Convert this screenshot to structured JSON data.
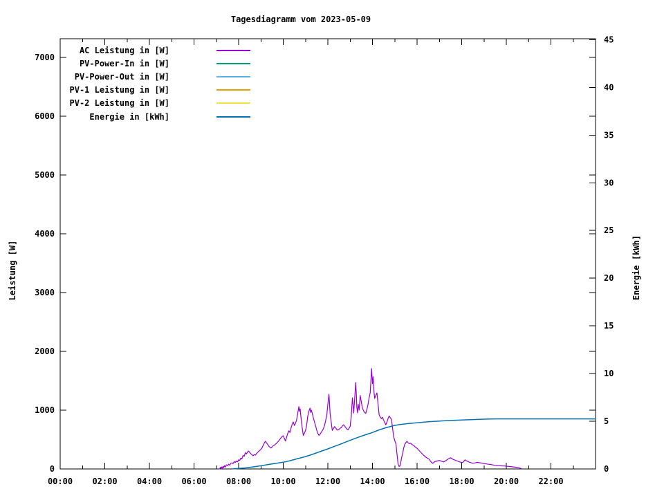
{
  "chart_data": {
    "type": "line",
    "title": "Tagesdiagramm vom 2023-05-09",
    "xlabel": "",
    "ylabel": "Leistung [W]",
    "y2label": "Energie [kWh]",
    "grid": false,
    "legend_position": "top-left-inside",
    "x_range_hours": [
      0,
      24
    ],
    "y_range": [
      0,
      7315
    ],
    "y2_range": [
      0,
      45.1
    ],
    "x_ticks": [
      {
        "h": 0,
        "label": "00:00"
      },
      {
        "h": 2,
        "label": "02:00"
      },
      {
        "h": 4,
        "label": "04:00"
      },
      {
        "h": 6,
        "label": "06:00"
      },
      {
        "h": 8,
        "label": "08:00"
      },
      {
        "h": 10,
        "label": "10:00"
      },
      {
        "h": 12,
        "label": "12:00"
      },
      {
        "h": 14,
        "label": "14:00"
      },
      {
        "h": 16,
        "label": "16:00"
      },
      {
        "h": 18,
        "label": "18:00"
      },
      {
        "h": 20,
        "label": "20:00"
      },
      {
        "h": 22,
        "label": "22:00"
      }
    ],
    "x_minor_tick_every_hours": 1,
    "y_ticks": [
      {
        "v": 0,
        "label": "0"
      },
      {
        "v": 1000,
        "label": "1000"
      },
      {
        "v": 2000,
        "label": "2000"
      },
      {
        "v": 3000,
        "label": "3000"
      },
      {
        "v": 4000,
        "label": "4000"
      },
      {
        "v": 5000,
        "label": "5000"
      },
      {
        "v": 6000,
        "label": "6000"
      },
      {
        "v": 7000,
        "label": "7000"
      }
    ],
    "y2_ticks": [
      {
        "v": 0,
        "label": "0"
      },
      {
        "v": 5,
        "label": "5"
      },
      {
        "v": 10,
        "label": "10"
      },
      {
        "v": 15,
        "label": "15"
      },
      {
        "v": 20,
        "label": "20"
      },
      {
        "v": 25,
        "label": "25"
      },
      {
        "v": 30,
        "label": "30"
      },
      {
        "v": 35,
        "label": "35"
      },
      {
        "v": 40,
        "label": "40"
      },
      {
        "v": 45,
        "label": "45"
      }
    ],
    "series": [
      {
        "name": "AC Leistung in [W]",
        "color": "#9400D3",
        "axis": "y",
        "width": 1.2,
        "points": [
          [
            7.15,
            2
          ],
          [
            7.18,
            25
          ],
          [
            7.2,
            8
          ],
          [
            7.23,
            35
          ],
          [
            7.26,
            12
          ],
          [
            7.3,
            45
          ],
          [
            7.33,
            20
          ],
          [
            7.36,
            55
          ],
          [
            7.4,
            30
          ],
          [
            7.45,
            70
          ],
          [
            7.5,
            55
          ],
          [
            7.55,
            80
          ],
          [
            7.6,
            65
          ],
          [
            7.65,
            95
          ],
          [
            7.7,
            105
          ],
          [
            7.75,
            90
          ],
          [
            7.8,
            125
          ],
          [
            7.85,
            110
          ],
          [
            7.9,
            135
          ],
          [
            7.95,
            120
          ],
          [
            8.0,
            155
          ],
          [
            8.05,
            145
          ],
          [
            8.1,
            185
          ],
          [
            8.15,
            170
          ],
          [
            8.2,
            230
          ],
          [
            8.25,
            215
          ],
          [
            8.3,
            275
          ],
          [
            8.35,
            255
          ],
          [
            8.4,
            290
          ],
          [
            8.45,
            305
          ],
          [
            8.5,
            280
          ],
          [
            8.55,
            260
          ],
          [
            8.6,
            240
          ],
          [
            8.65,
            225
          ],
          [
            8.7,
            245
          ],
          [
            8.75,
            235
          ],
          [
            8.8,
            260
          ],
          [
            8.85,
            280
          ],
          [
            8.9,
            300
          ],
          [
            8.95,
            315
          ],
          [
            9.0,
            335
          ],
          [
            9.05,
            360
          ],
          [
            9.1,
            400
          ],
          [
            9.15,
            440
          ],
          [
            9.2,
            470
          ],
          [
            9.25,
            445
          ],
          [
            9.3,
            420
          ],
          [
            9.35,
            390
          ],
          [
            9.4,
            370
          ],
          [
            9.45,
            355
          ],
          [
            9.5,
            375
          ],
          [
            9.55,
            395
          ],
          [
            9.6,
            405
          ],
          [
            9.65,
            420
          ],
          [
            9.7,
            435
          ],
          [
            9.75,
            460
          ],
          [
            9.8,
            480
          ],
          [
            9.85,
            505
          ],
          [
            9.9,
            530
          ],
          [
            9.95,
            550
          ],
          [
            10.0,
            565
          ],
          [
            10.05,
            520
          ],
          [
            10.1,
            475
          ],
          [
            10.15,
            535
          ],
          [
            10.2,
            600
          ],
          [
            10.25,
            650
          ],
          [
            10.3,
            620
          ],
          [
            10.35,
            700
          ],
          [
            10.4,
            760
          ],
          [
            10.45,
            800
          ],
          [
            10.5,
            740
          ],
          [
            10.55,
            780
          ],
          [
            10.6,
            830
          ],
          [
            10.65,
            950
          ],
          [
            10.7,
            1060
          ],
          [
            10.73,
            980
          ],
          [
            10.76,
            1020
          ],
          [
            10.8,
            860
          ],
          [
            10.85,
            700
          ],
          [
            10.9,
            570
          ],
          [
            10.95,
            610
          ],
          [
            11.0,
            655
          ],
          [
            11.05,
            750
          ],
          [
            11.1,
            900
          ],
          [
            11.15,
            980
          ],
          [
            11.2,
            1035
          ],
          [
            11.23,
            960
          ],
          [
            11.26,
            1000
          ],
          [
            11.3,
            950
          ],
          [
            11.35,
            870
          ],
          [
            11.4,
            800
          ],
          [
            11.45,
            730
          ],
          [
            11.5,
            660
          ],
          [
            11.55,
            605
          ],
          [
            11.6,
            570
          ],
          [
            11.65,
            590
          ],
          [
            11.7,
            620
          ],
          [
            11.75,
            650
          ],
          [
            11.8,
            685
          ],
          [
            11.85,
            740
          ],
          [
            11.9,
            820
          ],
          [
            11.95,
            905
          ],
          [
            12.0,
            1100
          ],
          [
            12.05,
            1270
          ],
          [
            12.08,
            1080
          ],
          [
            12.1,
            950
          ],
          [
            12.15,
            800
          ],
          [
            12.2,
            655
          ],
          [
            12.25,
            690
          ],
          [
            12.3,
            720
          ],
          [
            12.35,
            700
          ],
          [
            12.4,
            670
          ],
          [
            12.45,
            660
          ],
          [
            12.5,
            675
          ],
          [
            12.55,
            690
          ],
          [
            12.6,
            705
          ],
          [
            12.65,
            730
          ],
          [
            12.7,
            750
          ],
          [
            12.75,
            730
          ],
          [
            12.8,
            705
          ],
          [
            12.85,
            680
          ],
          [
            12.9,
            665
          ],
          [
            12.95,
            690
          ],
          [
            13.0,
            725
          ],
          [
            13.05,
            900
          ],
          [
            13.1,
            1210
          ],
          [
            13.13,
            1100
          ],
          [
            13.16,
            950
          ],
          [
            13.2,
            1180
          ],
          [
            13.25,
            1470
          ],
          [
            13.28,
            1250
          ],
          [
            13.3,
            1050
          ],
          [
            13.33,
            955
          ],
          [
            13.36,
            1100
          ],
          [
            13.4,
            1000
          ],
          [
            13.45,
            1250
          ],
          [
            13.5,
            1140
          ],
          [
            13.55,
            1035
          ],
          [
            13.6,
            990
          ],
          [
            13.65,
            960
          ],
          [
            13.7,
            945
          ],
          [
            13.75,
            1010
          ],
          [
            13.8,
            1100
          ],
          [
            13.85,
            1210
          ],
          [
            13.9,
            1300
          ],
          [
            13.93,
            1490
          ],
          [
            13.96,
            1706
          ],
          [
            14.0,
            1450
          ],
          [
            14.03,
            1565
          ],
          [
            14.07,
            1300
          ],
          [
            14.1,
            1200
          ],
          [
            14.15,
            1250
          ],
          [
            14.2,
            1294
          ],
          [
            14.25,
            1100
          ],
          [
            14.3,
            918
          ],
          [
            14.35,
            880
          ],
          [
            14.4,
            855
          ],
          [
            14.45,
            880
          ],
          [
            14.5,
            830
          ],
          [
            14.55,
            790
          ],
          [
            14.6,
            750
          ],
          [
            14.65,
            800
          ],
          [
            14.7,
            860
          ],
          [
            14.75,
            900
          ],
          [
            14.8,
            870
          ],
          [
            14.85,
            845
          ],
          [
            14.9,
            700
          ],
          [
            14.95,
            550
          ],
          [
            15.0,
            480
          ],
          [
            15.05,
            430
          ],
          [
            15.1,
            250
          ],
          [
            15.15,
            80
          ],
          [
            15.2,
            40
          ],
          [
            15.25,
            65
          ],
          [
            15.3,
            180
          ],
          [
            15.35,
            250
          ],
          [
            15.4,
            360
          ],
          [
            15.45,
            420
          ],
          [
            15.5,
            450
          ],
          [
            15.55,
            470
          ],
          [
            15.6,
            445
          ],
          [
            15.65,
            430
          ],
          [
            15.7,
            440
          ],
          [
            15.75,
            425
          ],
          [
            15.8,
            410
          ],
          [
            15.85,
            400
          ],
          [
            15.9,
            380
          ],
          [
            15.95,
            365
          ],
          [
            16.0,
            350
          ],
          [
            16.1,
            310
          ],
          [
            16.2,
            270
          ],
          [
            16.3,
            230
          ],
          [
            16.4,
            200
          ],
          [
            16.5,
            175
          ],
          [
            16.55,
            165
          ],
          [
            16.6,
            130
          ],
          [
            16.7,
            95
          ],
          [
            16.75,
            110
          ],
          [
            16.8,
            125
          ],
          [
            16.9,
            135
          ],
          [
            17.0,
            145
          ],
          [
            17.1,
            130
          ],
          [
            17.2,
            120
          ],
          [
            17.3,
            145
          ],
          [
            17.4,
            170
          ],
          [
            17.5,
            190
          ],
          [
            17.55,
            180
          ],
          [
            17.6,
            165
          ],
          [
            17.7,
            150
          ],
          [
            17.8,
            135
          ],
          [
            17.9,
            120
          ],
          [
            18.0,
            112
          ],
          [
            18.05,
            108
          ],
          [
            18.1,
            130
          ],
          [
            18.15,
            155
          ],
          [
            18.2,
            140
          ],
          [
            18.3,
            122
          ],
          [
            18.4,
            108
          ],
          [
            18.5,
            96
          ],
          [
            18.6,
            104
          ],
          [
            18.7,
            112
          ],
          [
            18.8,
            106
          ],
          [
            18.9,
            100
          ],
          [
            19.0,
            92
          ],
          [
            19.1,
            86
          ],
          [
            19.2,
            80
          ],
          [
            19.3,
            76
          ],
          [
            19.4,
            68
          ],
          [
            19.5,
            62
          ],
          [
            19.6,
            58
          ],
          [
            19.7,
            55
          ],
          [
            19.8,
            52
          ],
          [
            19.9,
            50
          ],
          [
            20.0,
            47
          ],
          [
            20.1,
            44
          ],
          [
            20.2,
            40
          ],
          [
            20.3,
            35
          ],
          [
            20.4,
            30
          ],
          [
            20.5,
            24
          ],
          [
            20.6,
            15
          ],
          [
            20.67,
            6
          ]
        ]
      },
      {
        "name": "PV-Power-In in [W]",
        "color": "#009E73",
        "axis": "y",
        "width": 1.2,
        "points": []
      },
      {
        "name": "PV-Power-Out in [W]",
        "color": "#56B4E9",
        "axis": "y",
        "width": 1.2,
        "points": []
      },
      {
        "name": "PV-1 Leistung in [W]",
        "color": "#E69F00",
        "axis": "y",
        "width": 1.2,
        "points": []
      },
      {
        "name": "PV-2 Leistung in [W]",
        "color": "#F0E442",
        "axis": "y",
        "width": 1.2,
        "points": []
      },
      {
        "name": "Energie in [kWh]",
        "color": "#0072B2",
        "axis": "y2",
        "width": 1.5,
        "points": [
          [
            7.75,
            0.01
          ],
          [
            8.0,
            0.05
          ],
          [
            8.3,
            0.11
          ],
          [
            8.6,
            0.2
          ],
          [
            9.0,
            0.33
          ],
          [
            9.3,
            0.45
          ],
          [
            9.6,
            0.56
          ],
          [
            10.0,
            0.7
          ],
          [
            10.3,
            0.86
          ],
          [
            10.6,
            1.05
          ],
          [
            11.0,
            1.3
          ],
          [
            11.3,
            1.52
          ],
          [
            11.6,
            1.78
          ],
          [
            12.0,
            2.1
          ],
          [
            12.3,
            2.37
          ],
          [
            12.6,
            2.63
          ],
          [
            13.0,
            3.0
          ],
          [
            13.3,
            3.27
          ],
          [
            13.6,
            3.52
          ],
          [
            14.0,
            3.82
          ],
          [
            14.3,
            4.1
          ],
          [
            14.6,
            4.32
          ],
          [
            15.0,
            4.57
          ],
          [
            15.3,
            4.68
          ],
          [
            15.6,
            4.76
          ],
          [
            16.0,
            4.84
          ],
          [
            16.5,
            4.95
          ],
          [
            17.0,
            5.02
          ],
          [
            17.5,
            5.08
          ],
          [
            18.0,
            5.13
          ],
          [
            18.5,
            5.18
          ],
          [
            19.0,
            5.22
          ],
          [
            19.5,
            5.25
          ],
          [
            20.0,
            5.25
          ],
          [
            21.0,
            5.25
          ],
          [
            22.0,
            5.25
          ],
          [
            23.0,
            5.25
          ],
          [
            24.0,
            5.25
          ]
        ]
      }
    ]
  }
}
